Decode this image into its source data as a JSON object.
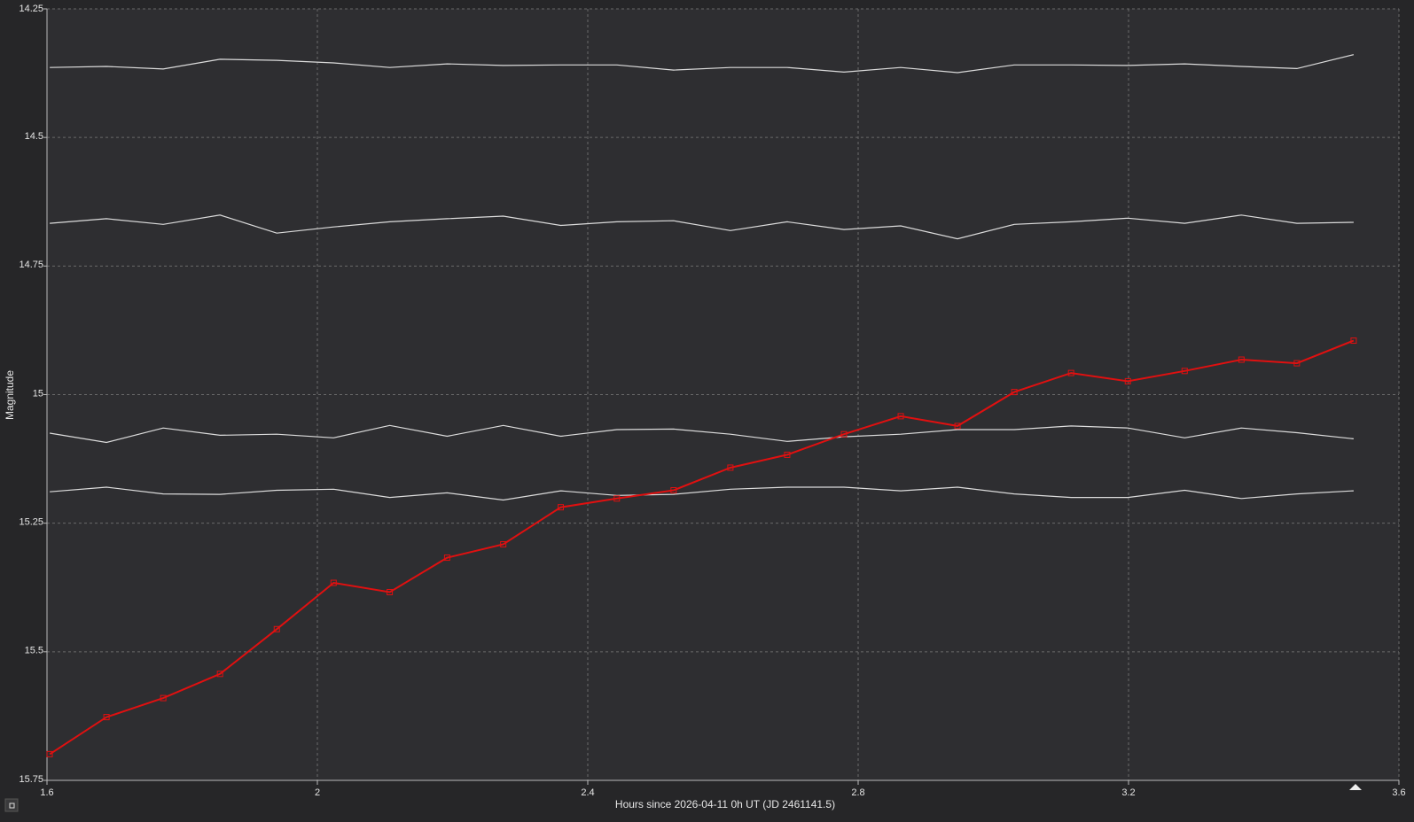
{
  "chart_data": {
    "type": "line",
    "xlabel": "Hours since 2026-04-11 0h UT (JD 2461141.5)",
    "ylabel": "Magnitude",
    "xlim": [
      1.6,
      3.6
    ],
    "xticks": [
      1.6,
      2,
      2.4,
      2.8,
      3.2,
      3.6
    ],
    "ylim": [
      15.75,
      14.25
    ],
    "yticks": [
      14.25,
      14.5,
      14.75,
      15,
      15.25,
      15.5,
      15.75
    ],
    "grid": true,
    "x": [
      1.604,
      1.688,
      1.772,
      1.856,
      1.94,
      2.024,
      2.107,
      2.192,
      2.275,
      2.36,
      2.443,
      2.527,
      2.611,
      2.695,
      2.779,
      2.863,
      2.947,
      3.031,
      3.115,
      3.199,
      3.283,
      3.367,
      3.449,
      3.533
    ],
    "series": [
      {
        "color": "#dcdcdc",
        "values": [
          14.364,
          14.362,
          14.367,
          14.348,
          14.35,
          14.355,
          14.364,
          14.357,
          14.36,
          14.359,
          14.359,
          14.369,
          14.364,
          14.364,
          14.373,
          14.364,
          14.374,
          14.359,
          14.359,
          14.36,
          14.357,
          14.362,
          14.366,
          14.339
        ]
      },
      {
        "color": "#dcdcdc",
        "values": [
          14.667,
          14.658,
          14.669,
          14.651,
          14.686,
          14.674,
          14.664,
          14.658,
          14.653,
          14.671,
          14.664,
          14.662,
          14.681,
          14.664,
          14.679,
          14.672,
          14.697,
          14.669,
          14.664,
          14.657,
          14.667,
          14.651,
          14.667,
          14.665
        ]
      },
      {
        "color": "#dcdcdc",
        "values": [
          15.075,
          15.093,
          15.065,
          15.079,
          15.077,
          15.084,
          15.06,
          15.081,
          15.06,
          15.081,
          15.068,
          15.067,
          15.077,
          15.091,
          15.082,
          15.077,
          15.068,
          15.068,
          15.061,
          15.065,
          15.084,
          15.065,
          15.074,
          15.086
        ]
      },
      {
        "color": "#dcdcdc",
        "values": [
          15.189,
          15.18,
          15.193,
          15.194,
          15.186,
          15.184,
          15.2,
          15.191,
          15.205,
          15.187,
          15.196,
          15.194,
          15.184,
          15.18,
          15.18,
          15.187,
          15.18,
          15.193,
          15.2,
          15.2,
          15.186,
          15.202,
          15.193,
          15.187
        ]
      },
      {
        "color": "#e01010",
        "marker": "square",
        "values": [
          15.699,
          15.627,
          15.59,
          15.543,
          15.456,
          15.366,
          15.384,
          15.317,
          15.291,
          15.219,
          15.202,
          15.186,
          15.142,
          15.117,
          15.077,
          15.042,
          15.061,
          14.995,
          14.958,
          14.974,
          14.954,
          14.932,
          14.939,
          14.895
        ]
      }
    ]
  }
}
